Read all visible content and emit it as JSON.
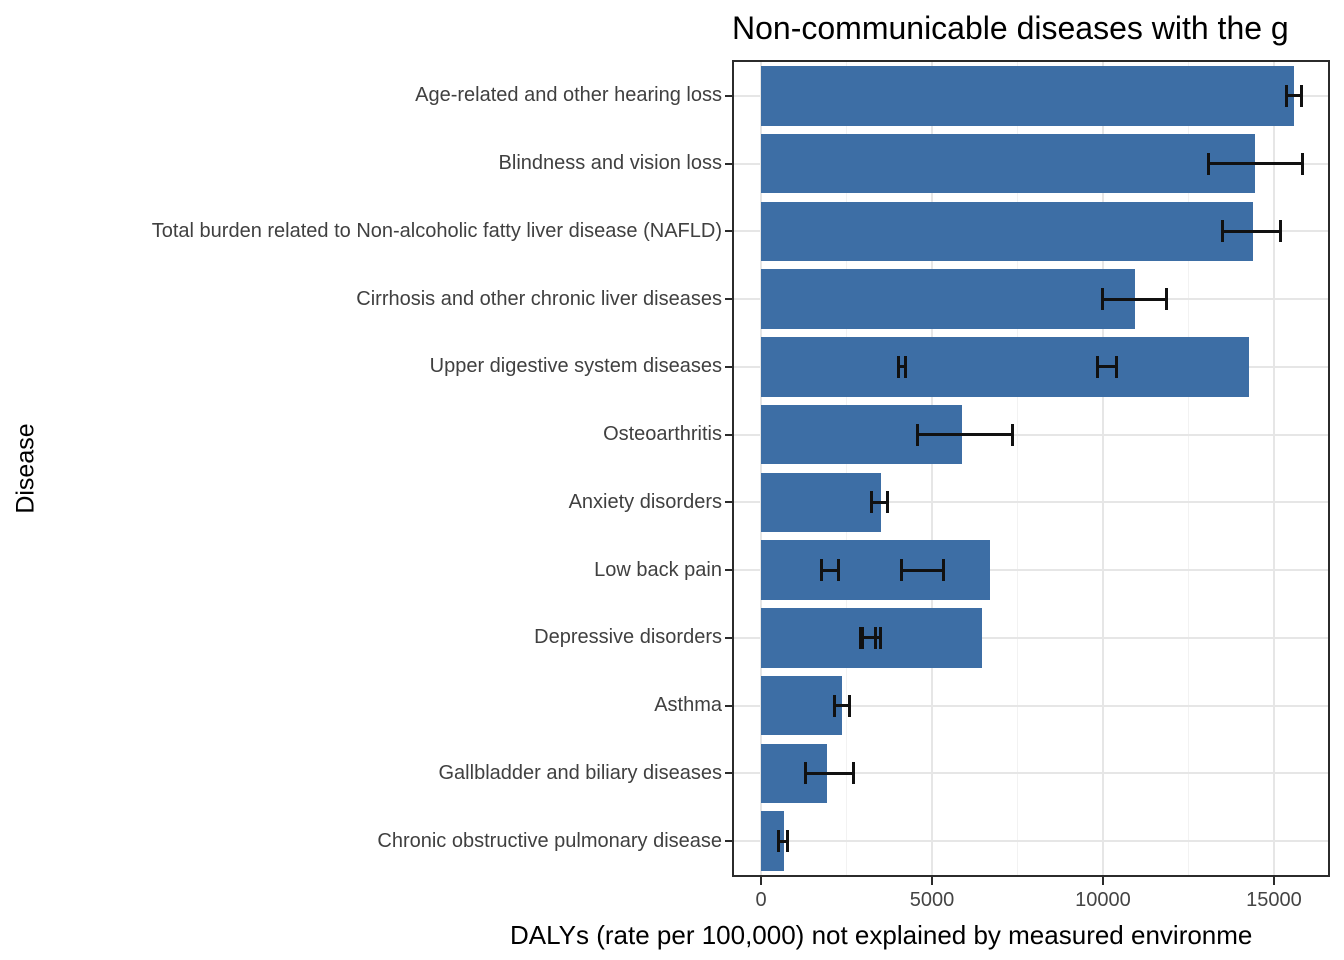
{
  "title": "Non-communicable diseases with the g",
  "axes": {
    "x_title": "DALYs (rate per 100,000) not explained by measured environme",
    "y_title": "Disease",
    "x_tick_labels": [
      "0",
      "5000",
      "10000",
      "15000"
    ]
  },
  "colors": {
    "bar_fill": "#3D6EA5",
    "panel_border": "#2B2B2B",
    "grid_major": "#E6E6E6",
    "grid_minor": "#F2F2F2",
    "error_bar": "#111111",
    "tick_label": "#444444",
    "y_label": "#404040"
  },
  "chart_data": {
    "type": "bar",
    "orientation": "horizontal",
    "title": "Non-communicable diseases with the g",
    "xlabel": "DALYs (rate per 100,000) not explained by measured environme",
    "ylabel": "Disease",
    "xlim": [
      -790,
      16580
    ],
    "x_major_ticks": [
      0,
      5000,
      10000,
      15000
    ],
    "x_minor_gridlines": [
      2500,
      7500,
      12500
    ],
    "grid": true,
    "legend": false,
    "categories": [
      "Age-related and other hearing loss",
      "Blindness and vision loss",
      "Total burden related to Non-alcoholic fatty liver disease (NAFLD)",
      "Cirrhosis and other chronic liver diseases",
      "Upper digestive system diseases",
      "Osteoarthritis",
      "Anxiety disorders",
      "Low back pain",
      "Depressive disorders",
      "Asthma",
      "Gallbladder and biliary diseases",
      "Chronic obstructive pulmonary disease"
    ],
    "values": [
      15590,
      14450,
      14390,
      10940,
      14270,
      5880,
      3510,
      6700,
      6450,
      2380,
      1920,
      670
    ],
    "error_bars": [
      [
        [
          15340,
          15830
        ]
      ],
      [
        [
          13080,
          15850
        ]
      ],
      [
        [
          13490,
          15200
        ]
      ],
      [
        [
          9970,
          11870
        ]
      ],
      [
        [
          4000,
          4240
        ],
        [
          9815,
          10400
        ]
      ],
      [
        [
          4550,
          7370
        ]
      ],
      [
        [
          3220,
          3700
        ]
      ],
      [
        [
          1750,
          2290
        ],
        [
          4090,
          5360
        ]
      ],
      [
        [
          2880,
          3360
        ],
        [
          2950,
          3510
        ]
      ],
      [
        [
          2130,
          2600
        ]
      ],
      [
        [
          1290,
          2720
        ]
      ],
      [
        [
          510,
          800
        ]
      ]
    ]
  }
}
